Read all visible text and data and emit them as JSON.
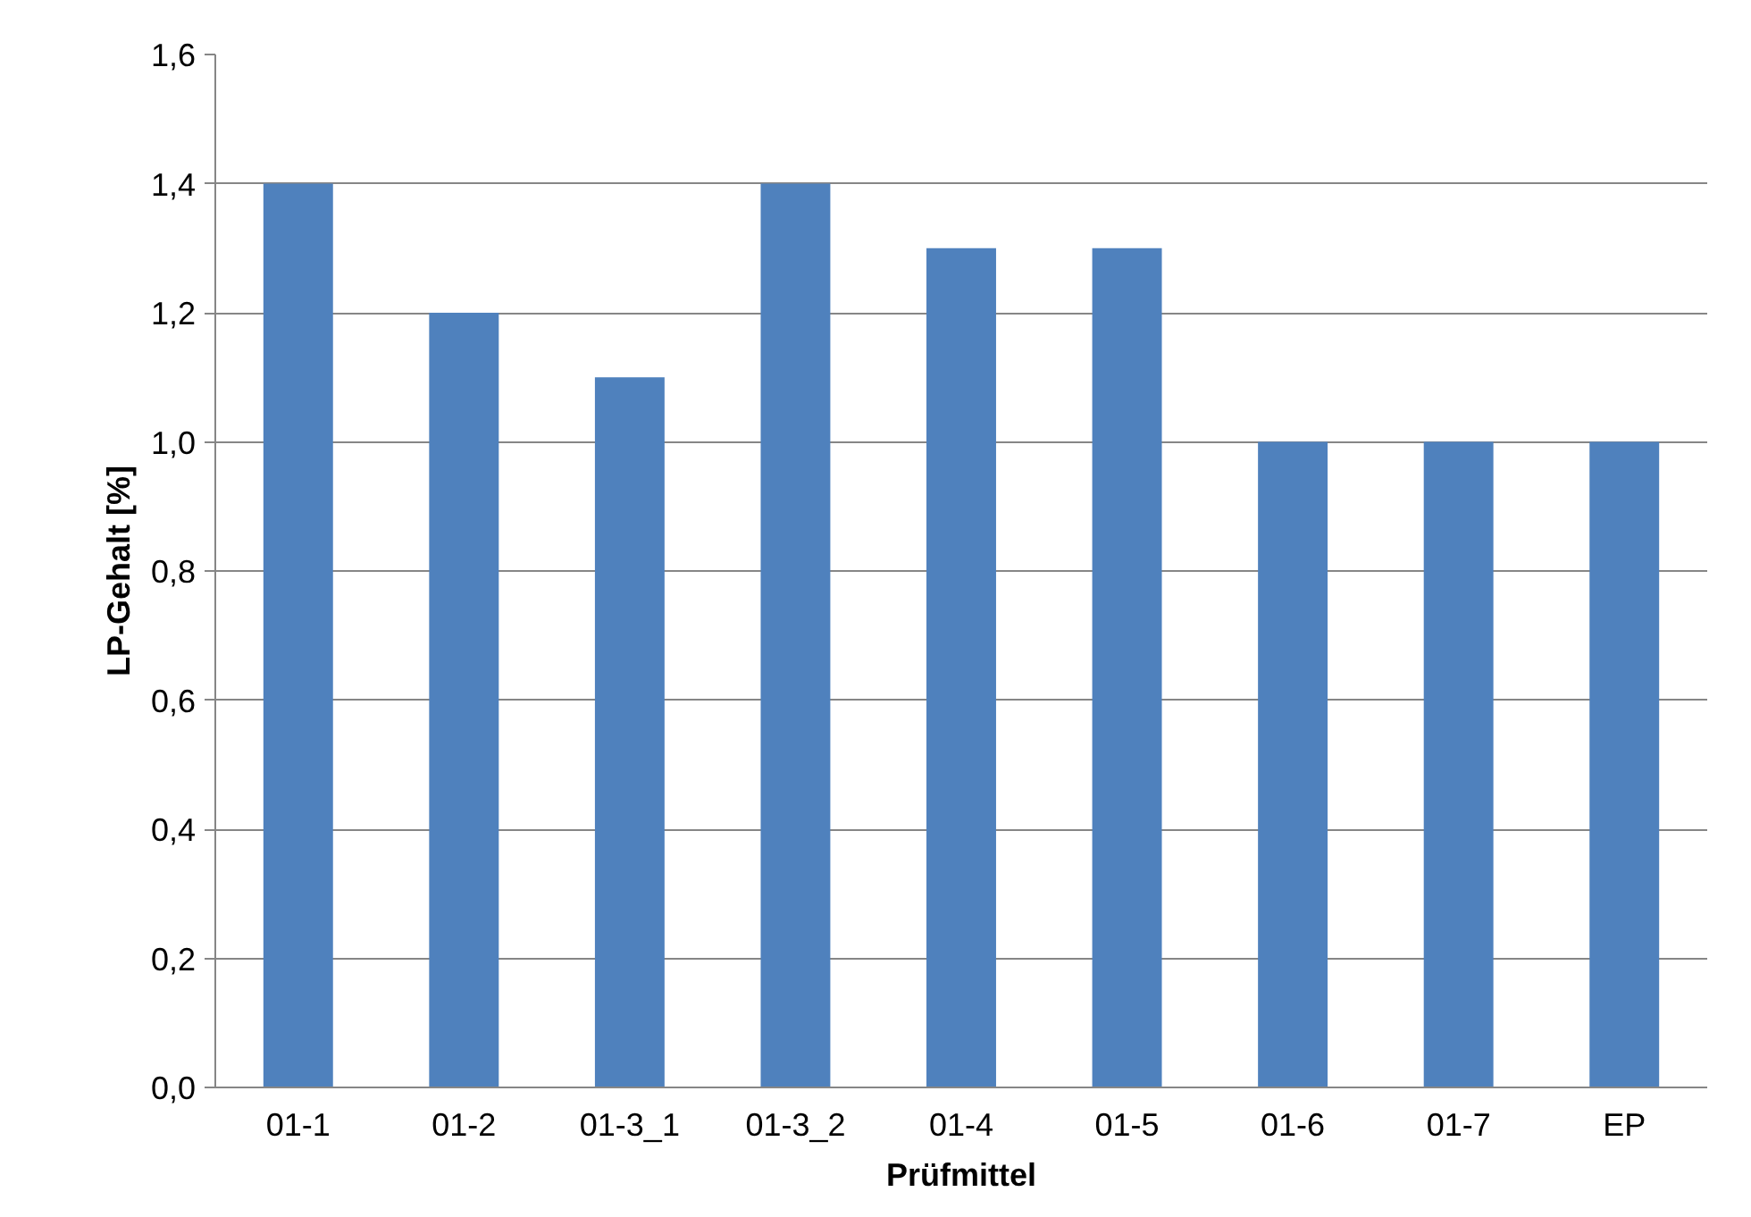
{
  "chart_data": {
    "type": "bar",
    "xlabel": "Prüfmittel",
    "ylabel": "LP-Gehalt [%]",
    "categories": [
      "01-1",
      "01-2",
      "01-3_1",
      "01-3_2",
      "01-4",
      "01-5",
      "01-6",
      "01-7",
      "EP"
    ],
    "values": [
      1.4,
      1.2,
      1.1,
      1.4,
      1.3,
      1.3,
      1.0,
      1.0,
      1.0
    ],
    "color": "#4f81bd",
    "ylim": [
      0,
      1.6
    ],
    "yticks": [
      {
        "value": 0,
        "label": "0,0"
      },
      {
        "value": 0.2,
        "label": "0,2"
      },
      {
        "value": 0.4,
        "label": "0,4"
      },
      {
        "value": 0.6,
        "label": "0,6"
      },
      {
        "value": 0.8,
        "label": "0,8"
      },
      {
        "value": 1.0,
        "label": "1,0"
      },
      {
        "value": 1.2,
        "label": "1,2"
      },
      {
        "value": 1.4,
        "label": "1,4"
      },
      {
        "value": 1.6,
        "label": "1,6"
      }
    ],
    "grid": "y"
  }
}
